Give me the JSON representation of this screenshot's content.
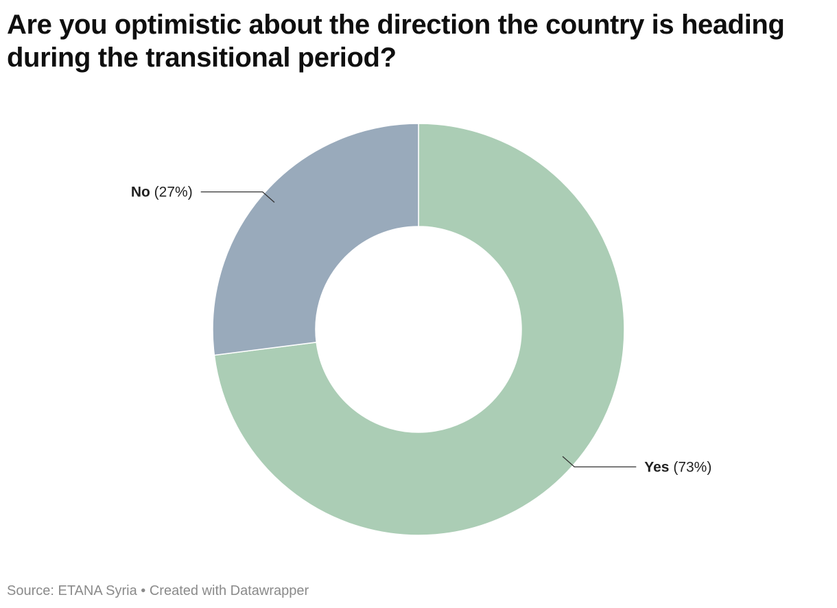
{
  "title": "Are you optimistic about the direction the country is heading during the transitional period?",
  "chart_data": {
    "type": "pie",
    "variant": "donut",
    "title": "Are you optimistic about the direction the country is heading during the transitional period?",
    "categories": [
      "Yes",
      "No"
    ],
    "values": [
      73,
      27
    ],
    "value_labels": [
      "(73%)",
      "(27%)"
    ],
    "colors": [
      "#abcdb5",
      "#99aabb"
    ]
  },
  "footer": {
    "source": "Source: ETANA Syria",
    "separator": "•",
    "credit": "Created with Datawrapper"
  }
}
